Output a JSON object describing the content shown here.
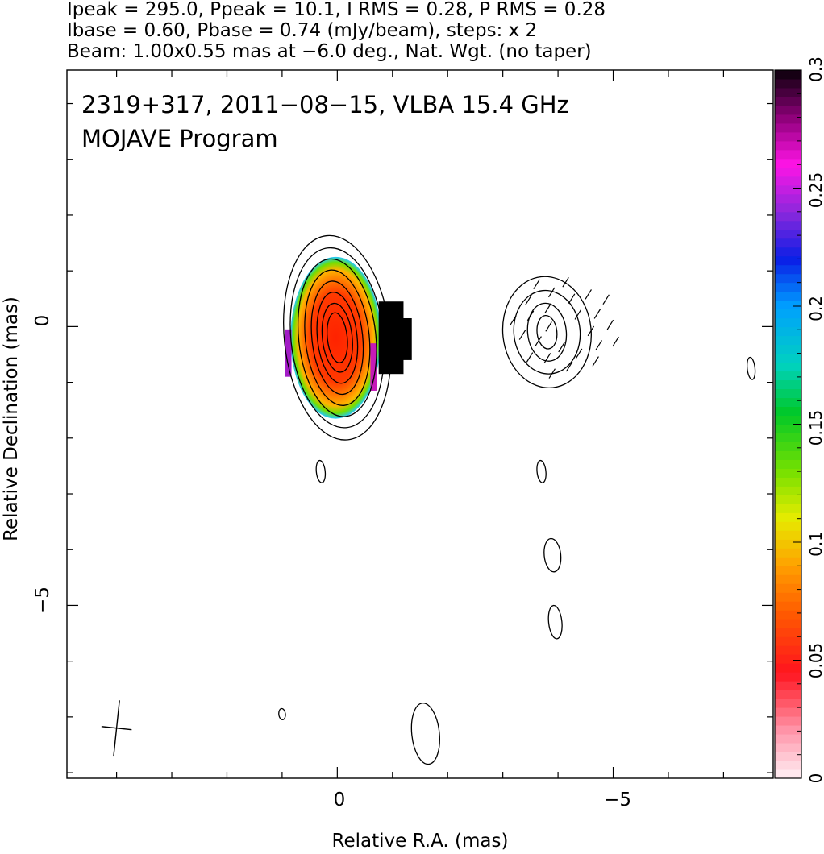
{
  "header": {
    "line1": "Ipeak = 295.0, Ppeak = 10.1, I RMS = 0.28, P RMS = 0.28",
    "line2": "Ibase = 0.60, Pbase = 0.74 (mJy/beam), steps: x 2",
    "line3": "Beam: 1.00x0.55 mas at −6.0 deg., Nat. Wgt. (no taper)"
  },
  "overlay": {
    "source_line": "2319+317, 2011−08−15, VLBA 15.4 GHz",
    "program_line": "MOJAVE Program"
  },
  "chart_data": {
    "type": "heatmap",
    "title": "2319+317, 2011−08−15, VLBA 15.4 GHz",
    "subtitle": "MOJAVE Program",
    "xlabel": "Relative R.A. (mas)",
    "ylabel": "Relative Declination (mas)",
    "xlim": [
      4.9,
      -7.9
    ],
    "ylim": [
      -8.1,
      4.6
    ],
    "x_ticks": [
      0,
      -5
    ],
    "x_tick_labels": [
      "0",
      "−5"
    ],
    "y_ticks": [
      0,
      -5
    ],
    "y_tick_labels": [
      "0",
      "−5"
    ],
    "colorbar": {
      "range": [
        0,
        0.3
      ],
      "ticks": [
        0,
        0.05,
        0.1,
        0.15,
        0.2,
        0.25,
        0.3
      ],
      "tick_labels": [
        "0",
        "0.05",
        "0.1",
        "0.15",
        "0.2",
        "0.25",
        "0.3"
      ]
    },
    "stokes_i": {
      "peak_mjy_per_beam": 295.0,
      "base_mjy_per_beam": 0.6,
      "contour_step_factor": 2,
      "components": [
        {
          "x": 0.0,
          "y": -0.2,
          "contour_half_axes_mas": [
            [
              0.18,
              0.45
            ],
            [
              0.27,
              0.62
            ],
            [
              0.36,
              0.82
            ],
            [
              0.46,
              1.02
            ],
            [
              0.58,
              1.22
            ],
            [
              0.7,
              1.42
            ],
            [
              0.84,
              1.62
            ],
            [
              0.96,
              1.84
            ]
          ]
        },
        {
          "x": -3.8,
          "y": -0.1,
          "contour_half_axes_mas": [
            [
              0.18,
              0.3
            ],
            [
              0.35,
              0.52
            ],
            [
              0.6,
              0.75
            ],
            [
              0.8,
              1.0
            ]
          ]
        },
        {
          "x": -1.6,
          "y": -7.3,
          "contour_half_axes_mas": [
            [
              0.25,
              0.55
            ]
          ]
        },
        {
          "x": -3.9,
          "y": -4.1,
          "contour_half_axes_mas": [
            [
              0.15,
              0.3
            ]
          ]
        },
        {
          "x": -3.95,
          "y": -5.3,
          "contour_half_axes_mas": [
            [
              0.12,
              0.3
            ]
          ]
        },
        {
          "x": 0.3,
          "y": -2.6,
          "contour_half_axes_mas": [
            [
              0.08,
              0.2
            ]
          ]
        },
        {
          "x": -3.7,
          "y": -2.6,
          "contour_half_axes_mas": [
            [
              0.08,
              0.2
            ]
          ]
        },
        {
          "x": -7.5,
          "y": -0.75,
          "contour_half_axes_mas": [
            [
              0.07,
              0.2
            ]
          ]
        },
        {
          "x": 1.0,
          "y": -6.95,
          "contour_half_axes_mas": [
            [
              0.06,
              0.1
            ]
          ]
        }
      ]
    },
    "fractional_polarization": {
      "peak_region": {
        "x": 0.05,
        "y": -0.3
      },
      "value_near_core": 0.04,
      "value_at_edges": 0.3
    },
    "beam": {
      "major_mas": 1.0,
      "minor_mas": 0.55,
      "pa_deg": -6.0,
      "x": 4.0,
      "y": -7.2
    }
  }
}
